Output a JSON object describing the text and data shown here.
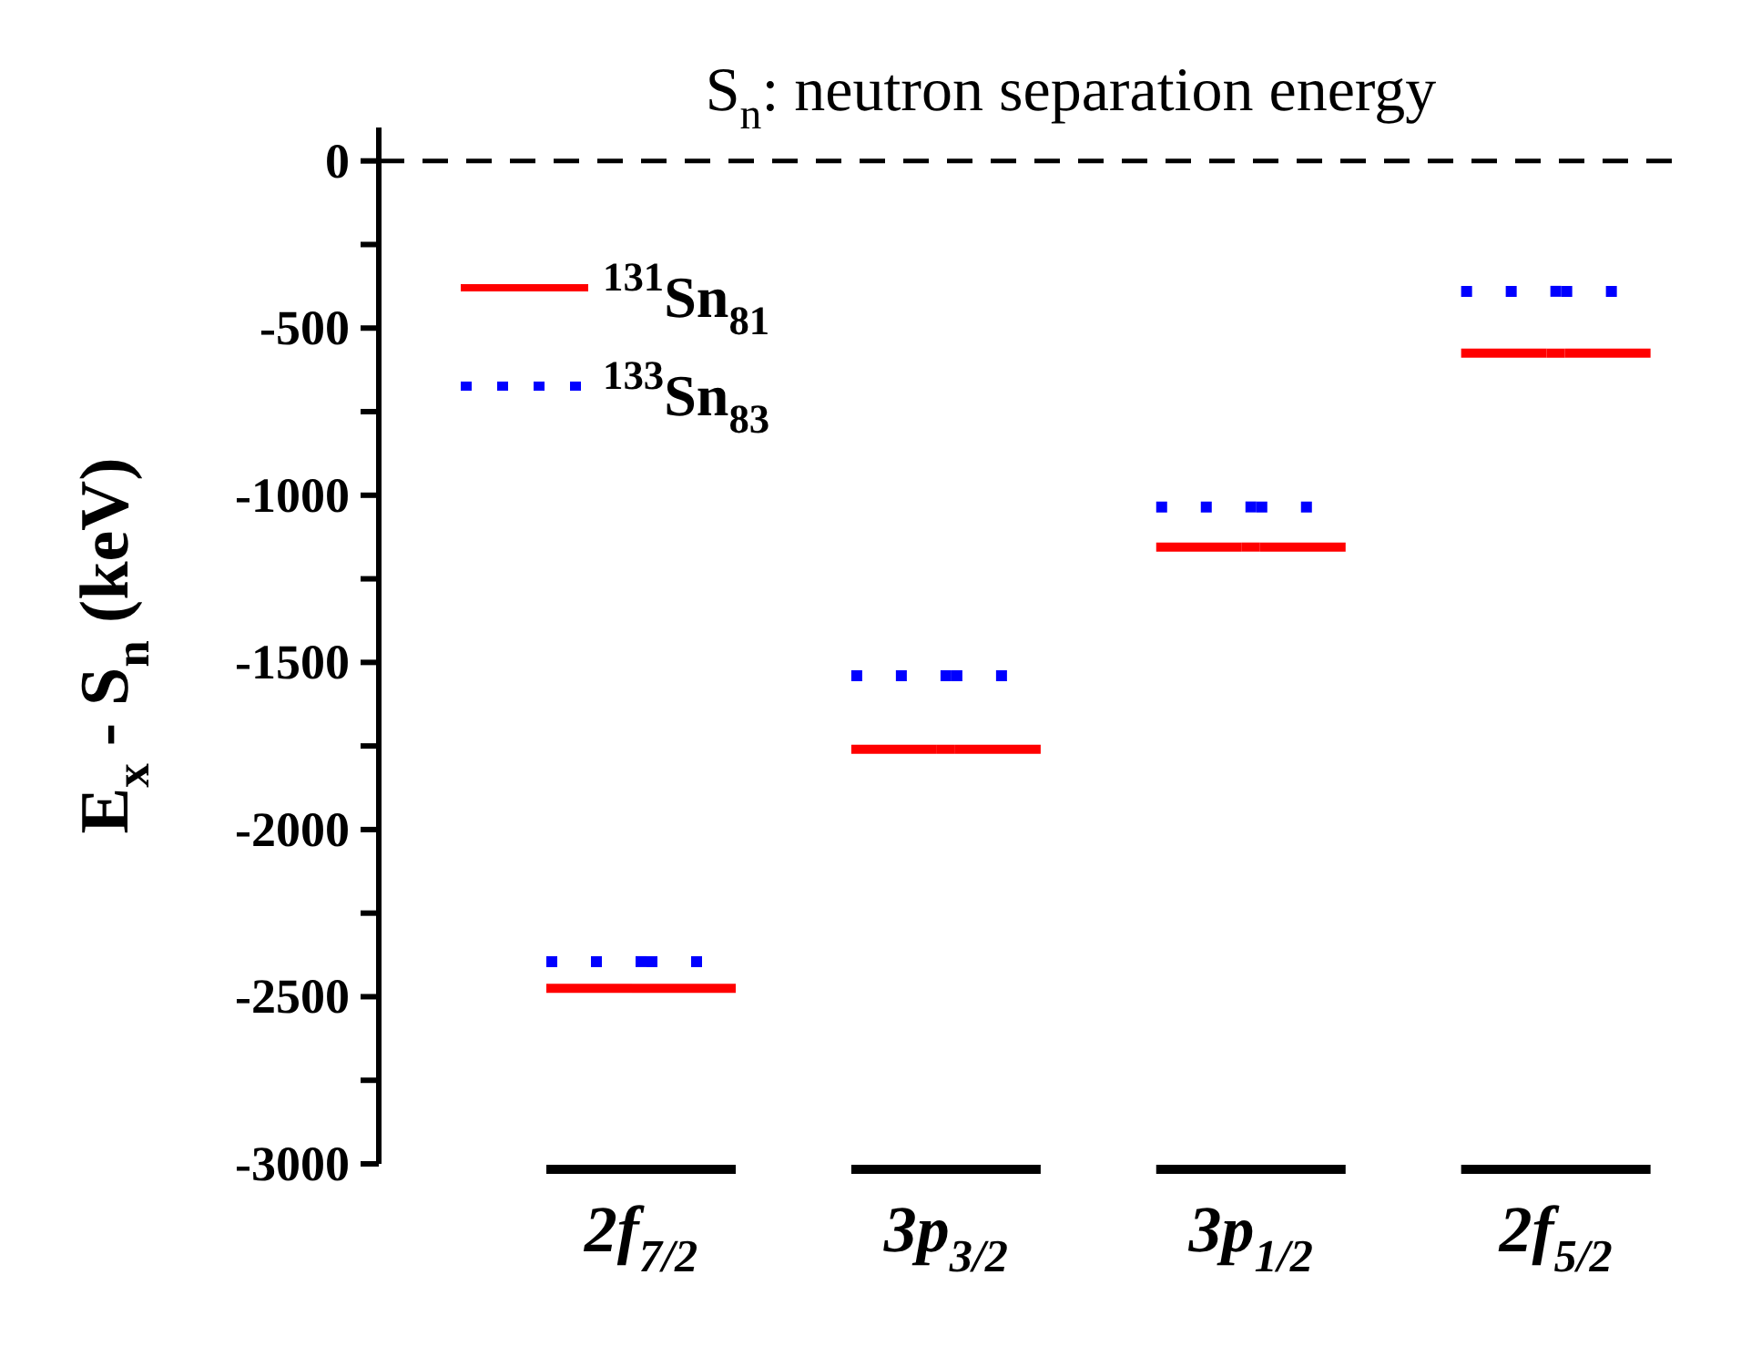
{
  "chart_data": {
    "type": "scatter",
    "ylabel": "E$_{x}$ - S$_{n}$ (keV)",
    "categories": [
      "2f$_{7/2}$",
      "3p$_{3/2}$",
      "3p$_{1/2}$",
      "2f$_{5/2}$"
    ],
    "series": [
      {
        "name": "$^{131}$Sn$_{81}$",
        "color": "#ff0000",
        "line_style": "solid",
        "values": [
          -2475,
          -1760,
          -1155,
          -575
        ]
      },
      {
        "name": "$^{133}$Sn$_{83}$",
        "color": "#0000ff",
        "line_style": "dotted",
        "values": [
          -2395,
          -1540,
          -1035,
          -390
        ]
      }
    ],
    "ylim": [
      -3000,
      100
    ],
    "yticks": [
      0,
      {
        "value": -250,
        "label": null
      },
      -500,
      {
        "value": -750,
        "label": null
      },
      -1000,
      {
        "value": -1250,
        "label": null
      },
      -1500,
      {
        "value": -1750,
        "label": null
      },
      -2000,
      {
        "value": -2250,
        "label": null
      },
      -2500,
      {
        "value": -2750,
        "label": null
      },
      -3000
    ],
    "ref_lines": [
      {
        "axis": "y",
        "value": 0,
        "label": "S$_{n}$: neutron separation energy",
        "color": "#000000",
        "line_style": "dashed"
      }
    ],
    "legend": "top left",
    "grid": false
  }
}
